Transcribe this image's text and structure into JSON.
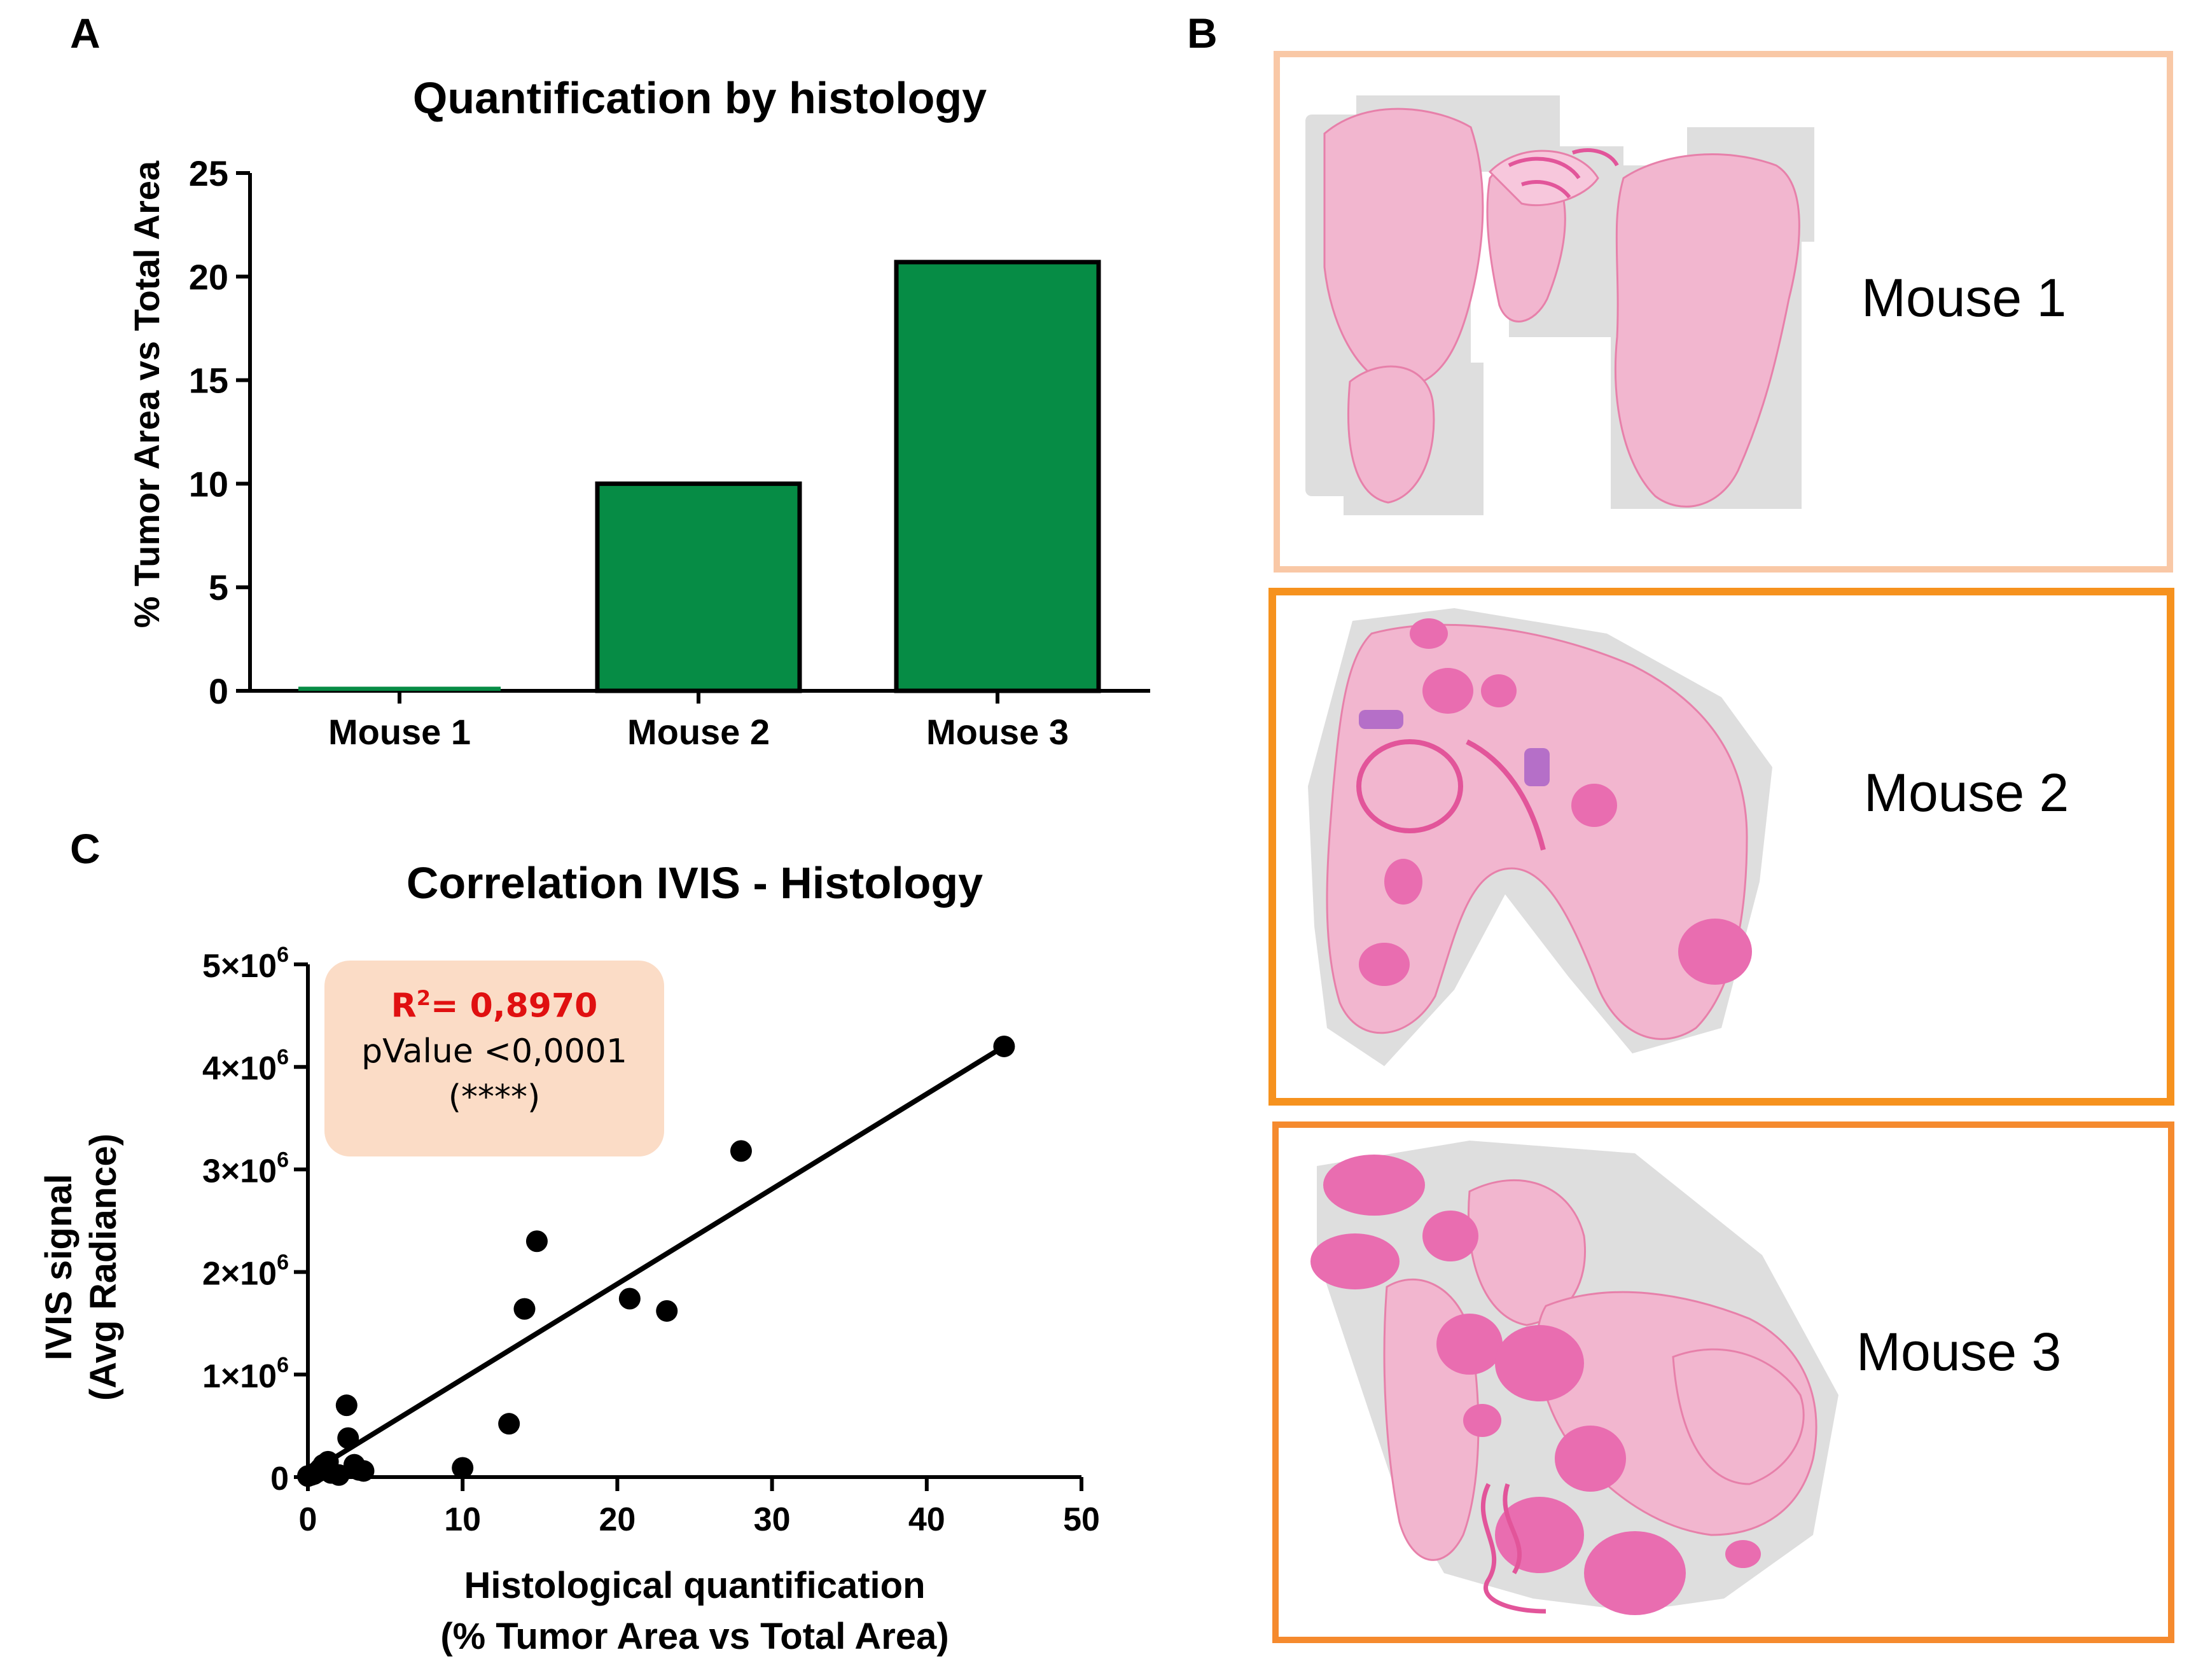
{
  "panels": {
    "a": "A",
    "b": "B",
    "c": "C"
  },
  "colors": {
    "bar_fill": "#068c45",
    "stat_box": "#fbdcc6",
    "r2_text": "#e01010",
    "frame_mouse1": "#f9c8a6",
    "frame_mouse2": "#f6921e",
    "frame_mouse3": "#f58a2e",
    "tissue": "#f2b6cf",
    "tissue_dark": "#e2559a",
    "tile_bg": "#dedede"
  },
  "bar_chart": {
    "type": "bar",
    "title": "Quantification by histology",
    "ylabel": "% Tumor Area vs Total Area",
    "xlabel": "",
    "categories": [
      "Mouse 1",
      "Mouse 2",
      "Mouse 3"
    ],
    "values": [
      0.2,
      10.0,
      20.7
    ],
    "ylim": [
      0,
      25
    ],
    "yticks": [
      0,
      5,
      10,
      15,
      20,
      25
    ],
    "ytick_labels": [
      "0",
      "5",
      "10",
      "15",
      "20",
      "25"
    ]
  },
  "scatter_chart": {
    "type": "scatter",
    "title": "Correlation IVIS - Histology",
    "xlabel_line1": "Histological quantification",
    "xlabel_line2": "(% Tumor Area vs Total Area)",
    "ylabel_line1": "IVIS signal",
    "ylabel_line2": "(Avg Radiance)",
    "xlim": [
      0,
      50
    ],
    "ylim": [
      0,
      5000000
    ],
    "xticks": [
      0,
      10,
      20,
      30,
      40,
      50
    ],
    "xtick_labels": [
      "0",
      "10",
      "20",
      "30",
      "40",
      "50"
    ],
    "yticks": [
      0,
      1000000,
      2000000,
      3000000,
      4000000,
      5000000
    ],
    "ytick_labels": [
      {
        "base": "0",
        "exp": ""
      },
      {
        "base": "1×10",
        "exp": "6"
      },
      {
        "base": "2×10",
        "exp": "6"
      },
      {
        "base": "3×10",
        "exp": "6"
      },
      {
        "base": "4×10",
        "exp": "6"
      },
      {
        "base": "5×10",
        "exp": "6"
      }
    ],
    "points": [
      [
        0.0,
        10000
      ],
      [
        0.2,
        20000
      ],
      [
        0.4,
        30000
      ],
      [
        0.6,
        50000
      ],
      [
        0.8,
        80000
      ],
      [
        1.0,
        120000
      ],
      [
        1.3,
        150000
      ],
      [
        1.5,
        40000
      ],
      [
        2.0,
        20000
      ],
      [
        2.5,
        700000
      ],
      [
        2.6,
        380000
      ],
      [
        3.0,
        120000
      ],
      [
        3.3,
        70000
      ],
      [
        3.6,
        60000
      ],
      [
        10.0,
        90000
      ],
      [
        13.0,
        520000
      ],
      [
        14.0,
        1640000
      ],
      [
        14.8,
        2300000
      ],
      [
        20.8,
        1740000
      ],
      [
        23.2,
        1620000
      ],
      [
        28.0,
        3180000
      ],
      [
        45.0,
        4200000
      ]
    ],
    "fit_line": [
      [
        0,
        30000
      ],
      [
        45,
        4200000
      ]
    ],
    "stats": {
      "r2_label": "R",
      "r2_exp": "2",
      "r2_value": "= 0,8970",
      "pvalue": "pValue <0,0001",
      "stars": "(****)"
    }
  },
  "images": [
    {
      "label": "Mouse 1"
    },
    {
      "label": "Mouse 2"
    },
    {
      "label": "Mouse 3"
    }
  ]
}
